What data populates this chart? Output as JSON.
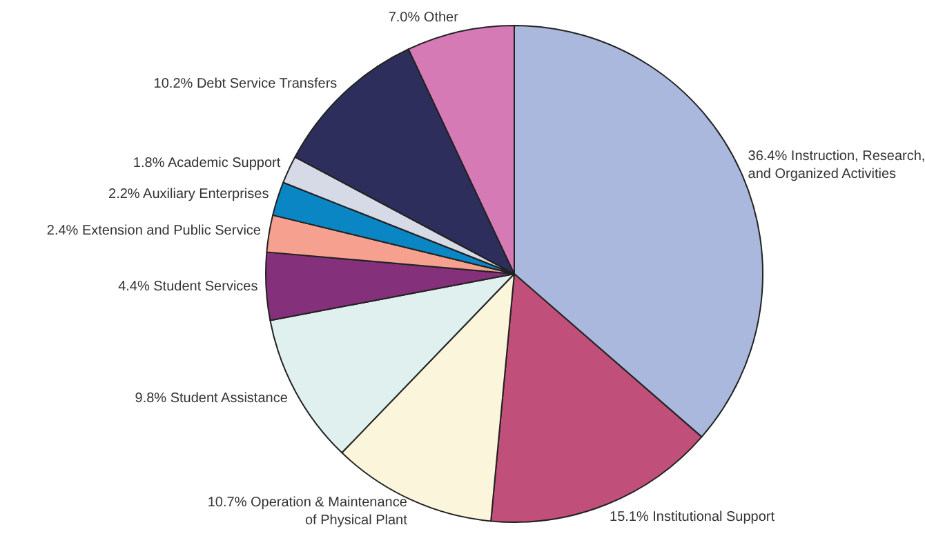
{
  "chart_data": {
    "type": "pie",
    "categories": [
      "Instruction, Research, and Organized Activities",
      "Institutional Support",
      "Operation & Maintenance of Physical Plant",
      "Student Assistance",
      "Student Services",
      "Extension and Public Service",
      "Auxiliary Enterprises",
      "Academic Support",
      "Debt Service Transfers",
      "Other"
    ],
    "values": [
      36.4,
      15.1,
      10.7,
      9.8,
      4.4,
      2.4,
      2.2,
      1.8,
      10.2,
      7.0
    ],
    "value_labels": [
      "36.4%",
      "15.1%",
      "10.7%",
      "9.8%",
      "4.4%",
      "2.4%",
      "2.2%",
      "1.8%",
      "10.2%",
      "7.0%"
    ],
    "colors": [
      "#aab8dd",
      "#c04f7a",
      "#fbf5dc",
      "#dff0ee",
      "#84307a",
      "#f6a08f",
      "#0a86c4",
      "#d6d9e6",
      "#2e2e5c",
      "#d67ab5"
    ],
    "legend": false
  }
}
